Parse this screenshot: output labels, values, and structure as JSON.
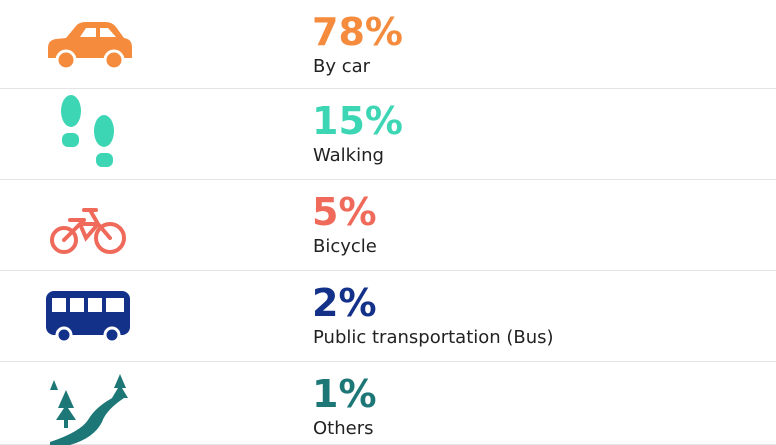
{
  "items": [
    {
      "percent": "78%",
      "label": "By car",
      "color": "#f58b3c"
    },
    {
      "percent": "15%",
      "label": "Walking",
      "color": "#3dd6b5"
    },
    {
      "percent": "5%",
      "label": "Bicycle",
      "color": "#ef6a5a"
    },
    {
      "percent": "2%",
      "label": "Public transportation (Bus)",
      "color": "#14318a"
    },
    {
      "percent": "1%",
      "label": "Others",
      "color": "#1e7777"
    }
  ]
}
